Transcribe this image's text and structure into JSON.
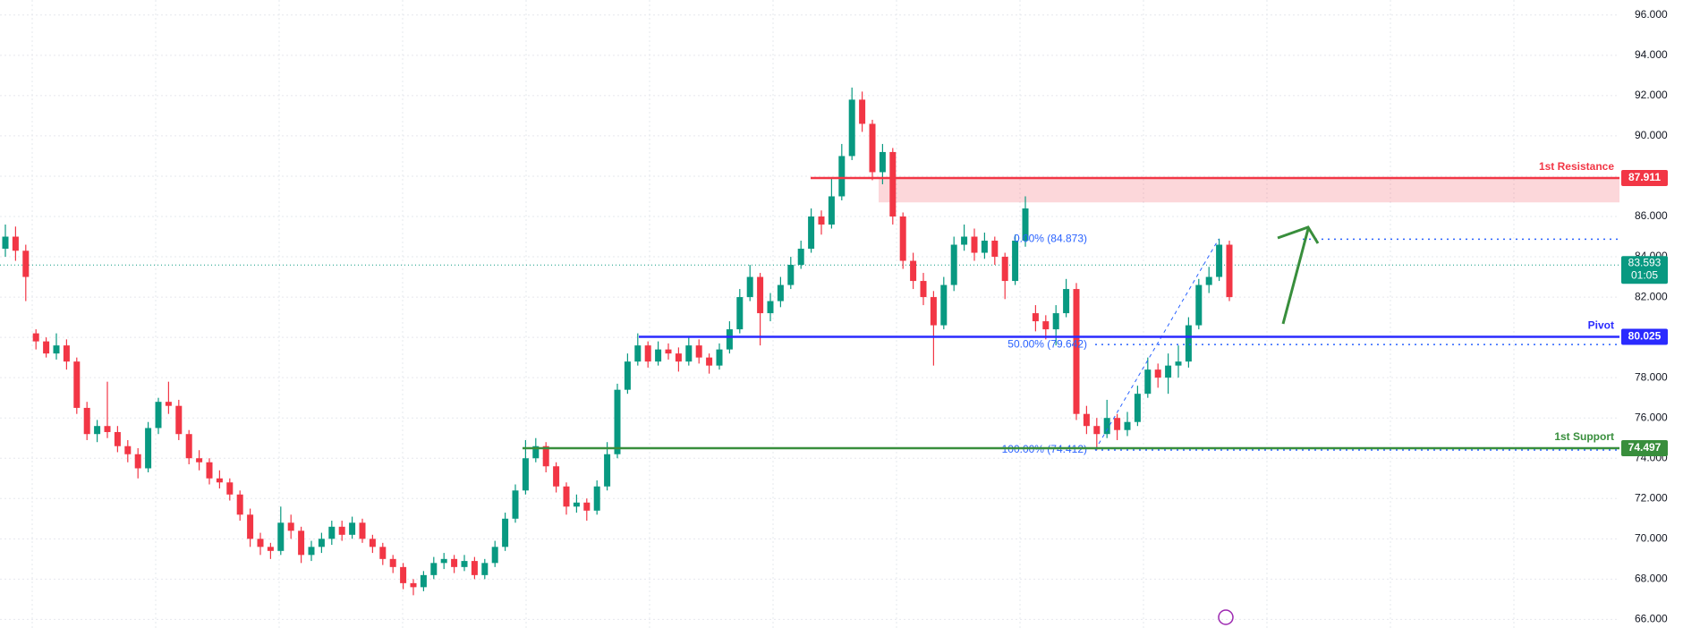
{
  "chart_data": {
    "type": "candlestick",
    "up_color": "#089981",
    "down_color": "#f23645",
    "ylim": [
      66,
      96
    ],
    "yticks": [
      {
        "value": 66,
        "label": "66.000"
      },
      {
        "value": 68,
        "label": "68.000"
      },
      {
        "value": 70,
        "label": "70.000"
      },
      {
        "value": 72,
        "label": "72.000"
      },
      {
        "value": 74,
        "label": "74.000"
      },
      {
        "value": 76,
        "label": "76.000"
      },
      {
        "value": 78,
        "label": "78.000"
      },
      {
        "value": 80,
        "label": "80.000"
      },
      {
        "value": 82,
        "label": "82.000"
      },
      {
        "value": 84,
        "label": "84.000"
      },
      {
        "value": 86,
        "label": "86.000"
      },
      {
        "value": 88,
        "label": "88.000"
      },
      {
        "value": 90,
        "label": "90.000"
      },
      {
        "value": 92,
        "label": "92.000"
      },
      {
        "value": 94,
        "label": "94.000"
      },
      {
        "value": 96,
        "label": "96.000"
      }
    ],
    "grid": true,
    "ohlc": [
      [
        84.4,
        85.6,
        84.0,
        85.0
      ],
      [
        85.0,
        85.5,
        83.8,
        84.3
      ],
      [
        84.3,
        84.6,
        81.8,
        83.0
      ],
      [
        80.2,
        80.4,
        79.4,
        79.8
      ],
      [
        79.8,
        80.0,
        79.0,
        79.2
      ],
      [
        79.2,
        80.2,
        78.9,
        79.6
      ],
      [
        79.6,
        79.9,
        78.4,
        78.8
      ],
      [
        78.8,
        79.0,
        76.2,
        76.5
      ],
      [
        76.5,
        76.8,
        74.9,
        75.2
      ],
      [
        75.2,
        75.9,
        74.8,
        75.6
      ],
      [
        75.6,
        77.8,
        75.0,
        75.3
      ],
      [
        75.3,
        75.6,
        74.3,
        74.6
      ],
      [
        74.6,
        74.9,
        73.8,
        74.2
      ],
      [
        74.2,
        74.5,
        73.0,
        73.5
      ],
      [
        73.5,
        75.8,
        73.3,
        75.5
      ],
      [
        75.5,
        77.0,
        75.2,
        76.8
      ],
      [
        76.8,
        77.8,
        76.2,
        76.6
      ],
      [
        76.6,
        76.9,
        74.9,
        75.2
      ],
      [
        75.2,
        75.4,
        73.7,
        74.0
      ],
      [
        74.0,
        74.4,
        73.4,
        73.8
      ],
      [
        73.8,
        74.0,
        72.7,
        73.0
      ],
      [
        73.0,
        73.4,
        72.5,
        72.8
      ],
      [
        72.8,
        73.0,
        71.9,
        72.2
      ],
      [
        72.2,
        72.4,
        70.9,
        71.2
      ],
      [
        71.2,
        71.5,
        69.6,
        70.0
      ],
      [
        70.0,
        70.3,
        69.2,
        69.6
      ],
      [
        69.6,
        69.8,
        69.0,
        69.4
      ],
      [
        69.4,
        71.6,
        69.2,
        70.8
      ],
      [
        70.8,
        71.2,
        70.0,
        70.4
      ],
      [
        70.4,
        70.6,
        68.8,
        69.2
      ],
      [
        69.2,
        69.9,
        68.9,
        69.6
      ],
      [
        69.6,
        70.3,
        69.3,
        70.0
      ],
      [
        70.0,
        70.9,
        69.7,
        70.6
      ],
      [
        70.6,
        70.9,
        69.9,
        70.2
      ],
      [
        70.2,
        71.1,
        70.0,
        70.8
      ],
      [
        70.8,
        71.0,
        69.8,
        70.0
      ],
      [
        70.0,
        70.2,
        69.3,
        69.6
      ],
      [
        69.6,
        69.8,
        68.7,
        69.0
      ],
      [
        69.0,
        69.2,
        68.3,
        68.6
      ],
      [
        68.6,
        68.8,
        67.5,
        67.8
      ],
      [
        67.8,
        68.0,
        67.2,
        67.6
      ],
      [
        67.6,
        68.4,
        67.4,
        68.2
      ],
      [
        68.2,
        69.1,
        68.0,
        68.8
      ],
      [
        68.8,
        69.3,
        68.5,
        69.0
      ],
      [
        69.0,
        69.2,
        68.3,
        68.6
      ],
      [
        68.6,
        69.2,
        68.4,
        68.9
      ],
      [
        68.9,
        69.1,
        68.0,
        68.2
      ],
      [
        68.2,
        69.0,
        68.0,
        68.8
      ],
      [
        68.8,
        69.9,
        68.6,
        69.6
      ],
      [
        69.6,
        71.3,
        69.4,
        71.0
      ],
      [
        71.0,
        72.7,
        70.8,
        72.4
      ],
      [
        72.4,
        74.9,
        72.2,
        74.0
      ],
      [
        74.0,
        75.0,
        73.8,
        74.6
      ],
      [
        74.6,
        74.8,
        73.3,
        73.6
      ],
      [
        73.6,
        73.8,
        72.3,
        72.6
      ],
      [
        72.6,
        72.8,
        71.2,
        71.6
      ],
      [
        71.6,
        72.2,
        71.3,
        71.8
      ],
      [
        71.8,
        72.0,
        70.9,
        71.4
      ],
      [
        71.4,
        72.9,
        71.2,
        72.6
      ],
      [
        72.6,
        74.8,
        72.4,
        74.2
      ],
      [
        74.2,
        77.7,
        74.0,
        77.4
      ],
      [
        77.4,
        79.2,
        77.2,
        78.8
      ],
      [
        78.8,
        80.2,
        78.6,
        79.6
      ],
      [
        79.6,
        79.8,
        78.5,
        78.8
      ],
      [
        78.8,
        79.8,
        78.6,
        79.4
      ],
      [
        79.4,
        79.7,
        78.9,
        79.2
      ],
      [
        79.2,
        79.5,
        78.3,
        78.8
      ],
      [
        78.8,
        80.0,
        78.6,
        79.6
      ],
      [
        79.6,
        79.9,
        78.7,
        79.0
      ],
      [
        79.0,
        79.2,
        78.2,
        78.6
      ],
      [
        78.6,
        79.7,
        78.4,
        79.4
      ],
      [
        79.4,
        80.8,
        79.2,
        80.4
      ],
      [
        80.4,
        82.4,
        80.2,
        82.0
      ],
      [
        82.0,
        83.6,
        81.8,
        83.0
      ],
      [
        83.0,
        83.2,
        79.6,
        81.2
      ],
      [
        81.2,
        82.2,
        80.8,
        81.8
      ],
      [
        81.8,
        83.0,
        81.5,
        82.6
      ],
      [
        82.6,
        84.0,
        82.4,
        83.6
      ],
      [
        83.6,
        84.8,
        83.4,
        84.4
      ],
      [
        84.4,
        86.4,
        84.2,
        86.0
      ],
      [
        86.0,
        86.3,
        85.1,
        85.6
      ],
      [
        85.6,
        87.9,
        85.4,
        87.0
      ],
      [
        87.0,
        89.6,
        86.8,
        89.0
      ],
      [
        89.0,
        92.4,
        88.8,
        91.8
      ],
      [
        91.8,
        92.2,
        90.2,
        90.6
      ],
      [
        90.6,
        90.8,
        87.8,
        88.2
      ],
      [
        88.2,
        89.6,
        87.6,
        89.2
      ],
      [
        89.2,
        89.4,
        85.6,
        86.0
      ],
      [
        86.0,
        86.2,
        83.4,
        83.8
      ],
      [
        83.8,
        84.2,
        82.4,
        82.8
      ],
      [
        82.8,
        83.2,
        81.6,
        82.0
      ],
      [
        82.0,
        82.3,
        78.6,
        80.6
      ],
      [
        80.6,
        83.0,
        80.4,
        82.6
      ],
      [
        82.6,
        85.0,
        82.3,
        84.6
      ],
      [
        84.6,
        85.6,
        84.3,
        85.0
      ],
      [
        85.0,
        85.4,
        83.8,
        84.2
      ],
      [
        84.2,
        85.2,
        83.9,
        84.8
      ],
      [
        84.8,
        85.0,
        83.6,
        84.0
      ],
      [
        84.0,
        84.2,
        81.9,
        82.8
      ],
      [
        82.8,
        85.1,
        82.6,
        84.8
      ],
      [
        84.8,
        87.0,
        84.5,
        86.4
      ],
      [
        81.2,
        81.6,
        80.3,
        80.8
      ],
      [
        80.8,
        81.1,
        79.9,
        80.4
      ],
      [
        80.4,
        81.6,
        79.6,
        81.2
      ],
      [
        81.2,
        82.9,
        81.0,
        82.4
      ],
      [
        82.4,
        82.7,
        75.9,
        76.2
      ],
      [
        76.2,
        76.6,
        75.2,
        75.6
      ],
      [
        75.6,
        76.0,
        74.4,
        75.2
      ],
      [
        75.2,
        76.9,
        75.0,
        76.0
      ],
      [
        76.0,
        76.2,
        74.9,
        75.4
      ],
      [
        75.4,
        76.3,
        75.1,
        75.8
      ],
      [
        75.8,
        77.6,
        75.6,
        77.2
      ],
      [
        77.2,
        79.0,
        77.0,
        78.4
      ],
      [
        78.4,
        78.7,
        77.5,
        78.0
      ],
      [
        78.0,
        79.2,
        77.2,
        78.6
      ],
      [
        78.6,
        79.6,
        78.0,
        78.8
      ],
      [
        78.8,
        81.0,
        78.5,
        80.6
      ],
      [
        80.6,
        82.9,
        80.4,
        82.6
      ],
      [
        82.6,
        83.5,
        82.2,
        83.0
      ],
      [
        83.0,
        84.9,
        82.8,
        84.6
      ],
      [
        84.6,
        84.8,
        81.8,
        82.0
      ]
    ],
    "levels": [
      {
        "name": "1st Resistance",
        "value": 87.911,
        "color": "#f23645"
      },
      {
        "name": "Pivot",
        "value": 80.025,
        "color": "#2a2aff"
      },
      {
        "name": "1st Support",
        "value": 74.497,
        "color": "#388e3c"
      }
    ],
    "resistance_zone": [
      86.7,
      87.911
    ],
    "fib": [
      {
        "value": 84.873,
        "label": "0.00% (84.873)"
      },
      {
        "value": 79.642,
        "label": "50.00% (79.642)"
      },
      {
        "value": 74.412,
        "label": "100.00% (74.412)"
      }
    ],
    "last_price": 83.593,
    "countdown": "01:05"
  }
}
